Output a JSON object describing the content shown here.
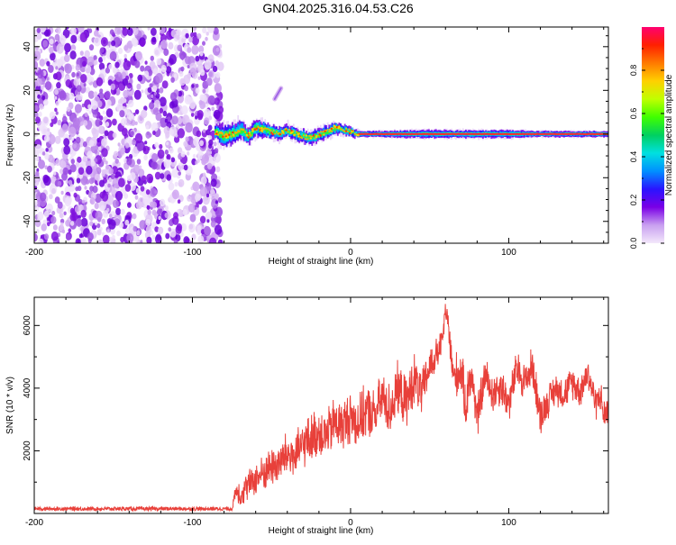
{
  "title": "GN04.2025.316.04.53.C26",
  "chart_data": [
    {
      "type": "heatmap",
      "name": "spectrogram",
      "xlabel": "Height of straight line (km)",
      "ylabel": "Frequency (Hz)",
      "xlim": [
        -200,
        163
      ],
      "ylim": [
        -50,
        49
      ],
      "x_ticks": [
        -200,
        -100,
        0,
        100
      ],
      "x_tick_labels": [
        "-200",
        "-100",
        "0",
        "100"
      ],
      "y_ticks": [
        40,
        20,
        0,
        -20,
        -40
      ],
      "y_tick_labels": [
        "40",
        "20",
        "0",
        "-20",
        "-40"
      ],
      "colorbar": {
        "label": "Normalized spectral amplitude",
        "range": [
          0,
          1
        ],
        "ticks": [
          0.0,
          0.2,
          0.4,
          0.6,
          0.8
        ],
        "tick_labels": [
          "0.0",
          "0.2",
          "0.4",
          "0.6",
          "0.8"
        ],
        "colors": [
          "#f3e8fb",
          "#c9a0f0",
          "#7a00e6",
          "#2a14ff",
          "#0090ff",
          "#00e0e0",
          "#00d060",
          "#40ff00",
          "#c0ff00",
          "#ffd000",
          "#ff7a00",
          "#ff2000",
          "#ff0070"
        ]
      },
      "noise_region": {
        "x_from": -200,
        "x_to": -82,
        "y_from": -50,
        "y_to": 49
      },
      "signal_track": {
        "x": [
          -86,
          -80,
          -75,
          -70,
          -65,
          -60,
          -55,
          -50,
          -45,
          -40,
          -35,
          -30,
          -25,
          -20,
          -15,
          -10,
          -5,
          0,
          5,
          20,
          40,
          60,
          80,
          100,
          120,
          140,
          163
        ],
        "y": [
          1,
          -1,
          0,
          2,
          -1,
          3,
          2,
          1,
          0,
          2,
          0,
          -1,
          -2,
          0,
          1,
          3,
          2,
          1,
          0,
          0,
          0,
          0,
          0,
          0,
          0,
          0,
          0
        ],
        "spread_hz": [
          4,
          6,
          5,
          5,
          4,
          4,
          4,
          3,
          3,
          3,
          3,
          3,
          3,
          3,
          3,
          3,
          2,
          2,
          1.5,
          1.5,
          2,
          2,
          2,
          2,
          1.5,
          1.5,
          1.5
        ]
      },
      "isolated_streak": {
        "x": [
          -48,
          -44
        ],
        "y": [
          16,
          21
        ]
      }
    },
    {
      "type": "line",
      "name": "snr",
      "xlabel": "Height of straight line (km)",
      "ylabel": "SNR (10 * v/v)",
      "xlim": [
        -200,
        163
      ],
      "ylim": [
        0,
        6900
      ],
      "x_ticks": [
        -200,
        -100,
        0,
        100
      ],
      "x_tick_labels": [
        "-200",
        "-100",
        "0",
        "100"
      ],
      "y_ticks": [
        2000,
        4000,
        6000
      ],
      "y_tick_labels": [
        "2000",
        "4000",
        "6000"
      ],
      "color": "#e8403a",
      "series": [
        {
          "name": "SNR",
          "x": [
            -200,
            -180,
            -160,
            -140,
            -120,
            -100,
            -80,
            -75,
            -72,
            -70,
            -65,
            -60,
            -55,
            -50,
            -45,
            -40,
            -35,
            -30,
            -25,
            -20,
            -15,
            -10,
            -5,
            0,
            5,
            10,
            15,
            20,
            25,
            30,
            35,
            40,
            45,
            50,
            55,
            58,
            60,
            62,
            65,
            70,
            73,
            75,
            78,
            80,
            85,
            90,
            95,
            100,
            105,
            110,
            115,
            120,
            125,
            130,
            135,
            140,
            145,
            150,
            155,
            158,
            160,
            163
          ],
          "y": [
            150,
            150,
            150,
            150,
            150,
            150,
            150,
            150,
            800,
            600,
            900,
            1100,
            1300,
            1500,
            1600,
            1900,
            1800,
            2200,
            2400,
            2600,
            2500,
            2900,
            2800,
            3100,
            2900,
            3300,
            3100,
            3700,
            3300,
            4000,
            3500,
            4300,
            3800,
            4700,
            5100,
            5500,
            6500,
            5900,
            4300,
            4600,
            3300,
            4400,
            4000,
            3000,
            4400,
            3800,
            4100,
            3500,
            4600,
            4200,
            4700,
            3100,
            3600,
            4000,
            3800,
            4200,
            3900,
            4500,
            3500,
            3800,
            3100,
            3400
          ],
          "noise_amplitude": [
            60,
            60,
            60,
            60,
            60,
            60,
            60,
            60,
            350,
            400,
            450,
            500,
            550,
            600,
            650,
            700,
            700,
            700,
            750,
            750,
            750,
            800,
            800,
            800,
            800,
            800,
            800,
            800,
            800,
            800,
            800,
            800,
            700,
            600,
            500,
            400,
            300,
            500,
            700,
            700,
            700,
            700,
            700,
            700,
            600,
            600,
            600,
            600,
            600,
            600,
            600,
            600,
            500,
            500,
            500,
            500,
            500,
            500,
            500,
            500,
            500,
            500
          ]
        }
      ]
    }
  ]
}
